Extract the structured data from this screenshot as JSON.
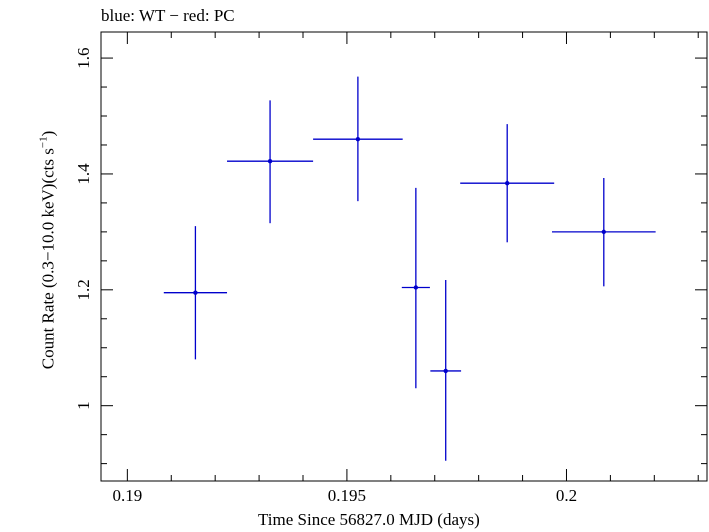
{
  "chart_data": {
    "type": "scatter",
    "title": "blue: WT − red: PC",
    "xlabel": "Time Since 56827.0 MJD (days)",
    "ylabel": "Count Rate (0.3−10.0 keV)(cts s",
    "ylabel_sup": "−1",
    "ylabel_close": ")",
    "xlim": [
      0.1894,
      0.2032
    ],
    "ylim": [
      0.87,
      1.645
    ],
    "xticks": [
      0.19,
      0.195,
      0.2
    ],
    "xtick_labels": [
      "0.19",
      "0.195",
      "0.2"
    ],
    "yticks": [
      1.0,
      1.2,
      1.4,
      1.6
    ],
    "ytick_labels": [
      "1",
      "1.2",
      "1.4",
      "1.6"
    ],
    "series": [
      {
        "name": "WT",
        "color": "#0000cc",
        "points": [
          {
            "x": 0.19155,
            "xerr": 0.00072,
            "y": 1.195,
            "yerr_low": 0.115,
            "yerr_high": 0.115
          },
          {
            "x": 0.19325,
            "xerr": 0.00098,
            "y": 1.422,
            "yerr_low": 0.107,
            "yerr_high": 0.105
          },
          {
            "x": 0.19525,
            "xerr": 0.00102,
            "y": 1.46,
            "yerr_low": 0.107,
            "yerr_high": 0.108
          },
          {
            "x": 0.19657,
            "xerr": 0.00032,
            "y": 1.204,
            "yerr_low": 0.174,
            "yerr_high": 0.172
          },
          {
            "x": 0.19725,
            "xerr": 0.00035,
            "y": 1.06,
            "yerr_low": 0.155,
            "yerr_high": 0.157
          },
          {
            "x": 0.19865,
            "xerr": 0.00107,
            "y": 1.384,
            "yerr_low": 0.102,
            "yerr_high": 0.102
          },
          {
            "x": 0.20085,
            "xerr": 0.00118,
            "y": 1.3,
            "yerr_low": 0.094,
            "yerr_high": 0.093
          }
        ]
      }
    ]
  }
}
